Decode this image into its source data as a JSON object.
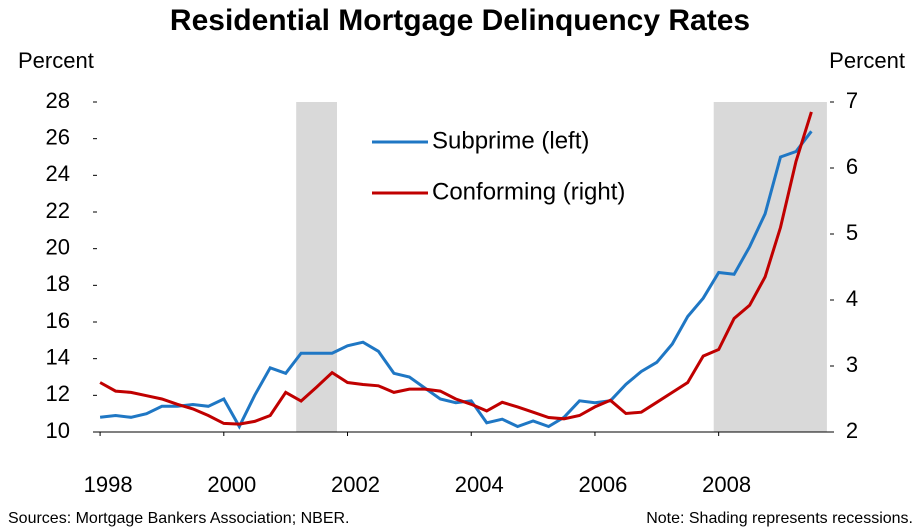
{
  "chart_data": {
    "type": "line",
    "title": "Residential Mortgage Delinquency Rates",
    "y_label": "Percent",
    "y2_label": "Percent",
    "source": "Sources:  Mortgage Bankers Association; NBER.",
    "note": "Note:  Shading represents recessions.",
    "x": [
      1998.0,
      1998.25,
      1998.5,
      1998.75,
      1999.0,
      1999.25,
      1999.5,
      1999.75,
      2000.0,
      2000.25,
      2000.5,
      2000.75,
      2001.0,
      2001.25,
      2001.5,
      2001.75,
      2002.0,
      2002.25,
      2002.5,
      2002.75,
      2003.0,
      2003.25,
      2003.5,
      2003.75,
      2004.0,
      2004.25,
      2004.5,
      2004.75,
      2005.0,
      2005.25,
      2005.5,
      2005.75,
      2006.0,
      2006.25,
      2006.5,
      2006.75,
      2007.0,
      2007.25,
      2007.5,
      2007.75,
      2008.0,
      2008.25,
      2008.5,
      2008.75,
      2009.0,
      2009.25,
      2009.5
    ],
    "series": [
      {
        "name": "Subprime (left)",
        "color": "#1f77c4",
        "axis": "y",
        "values": [
          10.8,
          10.9,
          10.8,
          11.0,
          11.4,
          11.4,
          11.5,
          11.4,
          11.8,
          10.3,
          12.0,
          13.5,
          13.2,
          14.3,
          14.3,
          14.3,
          14.7,
          14.9,
          14.4,
          13.2,
          13.0,
          12.4,
          11.8,
          11.6,
          11.7,
          10.5,
          10.7,
          10.3,
          10.6,
          10.3,
          10.8,
          11.7,
          11.6,
          11.7,
          12.6,
          13.3,
          13.8,
          14.8,
          16.3,
          17.3,
          18.7,
          18.6,
          20.1,
          21.9,
          25.0,
          25.3,
          26.4
        ]
      },
      {
        "name": "Conforming (right)",
        "color": "#c00000",
        "axis": "y2",
        "values": [
          2.75,
          2.62,
          2.6,
          2.55,
          2.5,
          2.42,
          2.35,
          2.25,
          2.13,
          2.12,
          2.16,
          2.25,
          2.6,
          2.47,
          2.68,
          2.9,
          2.75,
          2.72,
          2.7,
          2.6,
          2.65,
          2.65,
          2.62,
          2.5,
          2.42,
          2.32,
          2.45,
          2.38,
          2.3,
          2.22,
          2.2,
          2.25,
          2.38,
          2.48,
          2.28,
          2.3,
          2.45,
          2.6,
          2.75,
          3.15,
          3.25,
          3.72,
          3.92,
          4.35,
          5.1,
          6.1,
          6.85
        ]
      }
    ],
    "shading": [
      [
        2001.17,
        2001.83
      ],
      [
        2007.92,
        2009.75
      ]
    ],
    "shading_color": "#d9d9d9",
    "xlim": [
      1997.95,
      2009.8
    ],
    "xticks": [
      1998,
      2000,
      2002,
      2004,
      2006,
      2008
    ],
    "ylim": [
      10,
      28
    ],
    "yticks": [
      10,
      12,
      14,
      16,
      18,
      20,
      22,
      24,
      26,
      28
    ],
    "y2lim": [
      2,
      7
    ],
    "y2ticks": [
      2,
      3,
      4,
      5,
      6,
      7
    ]
  }
}
